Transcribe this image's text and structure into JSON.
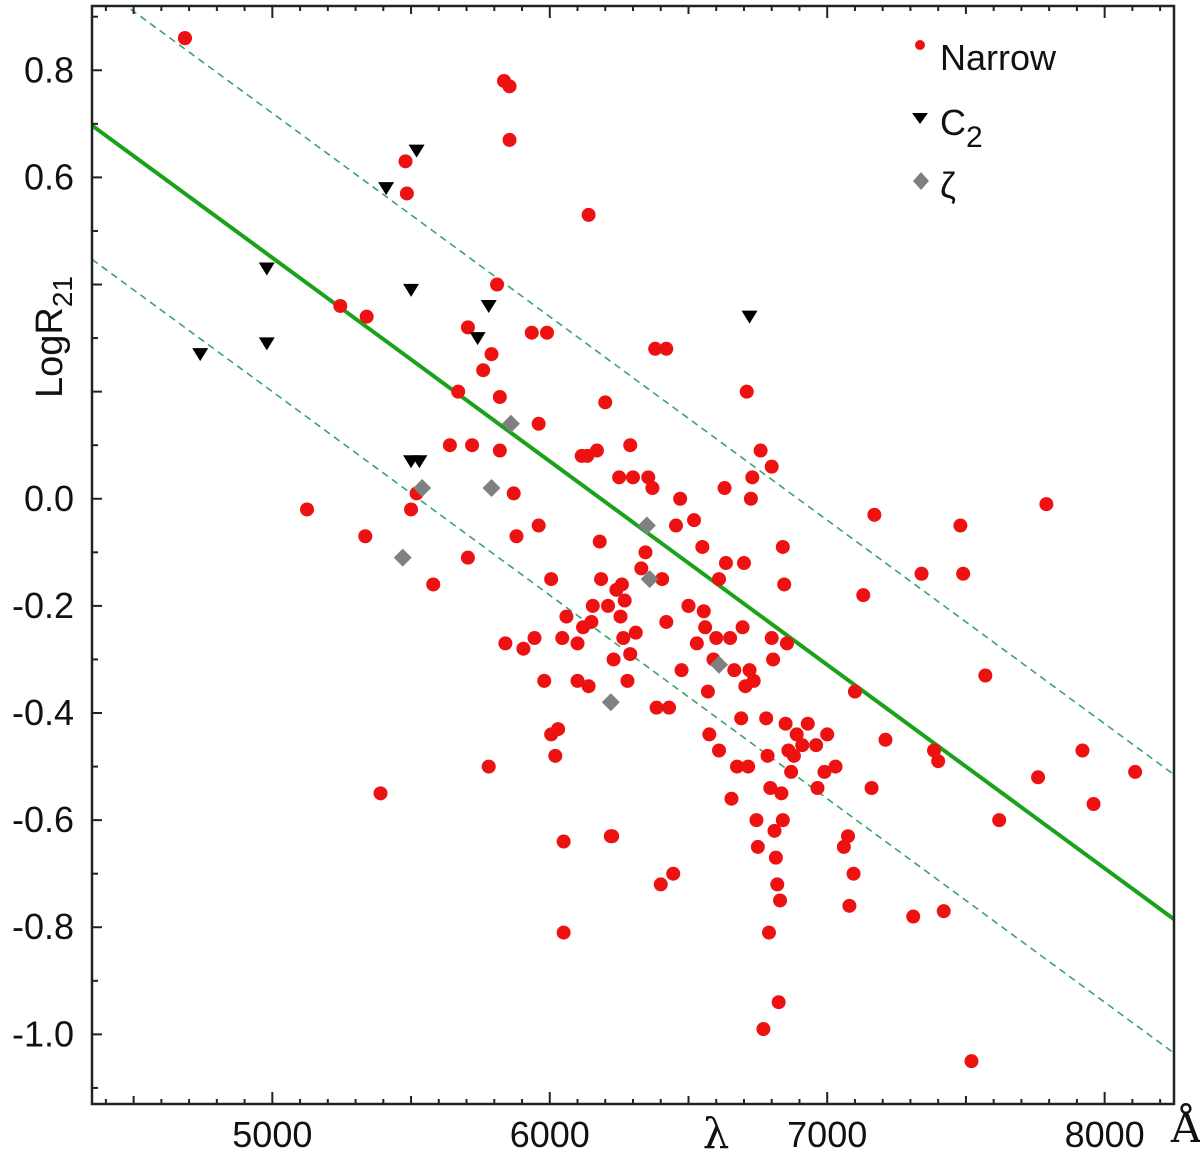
{
  "chart_data": {
    "type": "scatter",
    "xlabel": "λ",
    "x_unit": "Å",
    "ylabel_main": "LogR",
    "ylabel_sub": "21",
    "xlim": [
      4350,
      8250
    ],
    "ylim": [
      -1.13,
      0.92
    ],
    "x_ticks": [
      5000,
      6000,
      7000,
      8000
    ],
    "x_tick_labels": [
      "5000",
      "6000",
      "7000",
      "8000"
    ],
    "y_ticks": [
      0.8,
      0.6,
      0.0,
      -0.2,
      -0.4,
      -0.6,
      -0.8,
      -1.0
    ],
    "y_tick_labels": [
      "0.8",
      "0.6",
      "0.0",
      "-0.2",
      "-0.4",
      "-0.6",
      "-0.8",
      "-1.0"
    ],
    "grid": false,
    "legend_position": "top-right",
    "colors": {
      "narrow": "#ee1111",
      "c2": "#000000",
      "zeta": "#808080",
      "fit": "#1aa31a",
      "bounds": "#3aa36f"
    },
    "series": [
      {
        "name": "Narrow",
        "subscript": "",
        "marker": "circle",
        "points": [
          [
            4685,
            0.86
          ],
          [
            4685,
            0.86
          ],
          [
            5125,
            -0.02
          ],
          [
            5245,
            0.36
          ],
          [
            5340,
            0.34
          ],
          [
            5335,
            -0.07
          ],
          [
            5390,
            -0.55
          ],
          [
            5480,
            0.63
          ],
          [
            5485,
            0.57
          ],
          [
            5500,
            -0.02
          ],
          [
            5520,
            0.01
          ],
          [
            5580,
            -0.16
          ],
          [
            5640,
            0.1
          ],
          [
            5670,
            0.2
          ],
          [
            5705,
            0.32
          ],
          [
            5720,
            0.1
          ],
          [
            5705,
            -0.11
          ],
          [
            5760,
            0.24
          ],
          [
            5780,
            -0.5
          ],
          [
            5790,
            0.27
          ],
          [
            5810,
            0.4
          ],
          [
            5820,
            0.19
          ],
          [
            5820,
            0.09
          ],
          [
            5835,
            0.78
          ],
          [
            5855,
            0.77
          ],
          [
            5855,
            0.67
          ],
          [
            5840,
            -0.27
          ],
          [
            5870,
            0.01
          ],
          [
            5880,
            -0.07
          ],
          [
            5905,
            -0.28
          ],
          [
            5935,
            0.31
          ],
          [
            5960,
            0.14
          ],
          [
            5960,
            -0.05
          ],
          [
            5980,
            -0.34
          ],
          [
            5990,
            0.31
          ],
          [
            5945,
            -0.26
          ],
          [
            6005,
            -0.15
          ],
          [
            6005,
            -0.44
          ],
          [
            6020,
            -0.48
          ],
          [
            6030,
            -0.43
          ],
          [
            6045,
            -0.26
          ],
          [
            6060,
            -0.22
          ],
          [
            6050,
            -0.64
          ],
          [
            6050,
            -0.81
          ],
          [
            6100,
            -0.27
          ],
          [
            6100,
            -0.34
          ],
          [
            6115,
            0.08
          ],
          [
            6135,
            0.08
          ],
          [
            6120,
            -0.24
          ],
          [
            6140,
            -0.35
          ],
          [
            6150,
            -0.23
          ],
          [
            6155,
            -0.2
          ],
          [
            6140,
            0.53
          ],
          [
            6170,
            0.09
          ],
          [
            6180,
            -0.08
          ],
          [
            6185,
            -0.15
          ],
          [
            6200,
            0.18
          ],
          [
            6210,
            -0.2
          ],
          [
            6230,
            -0.3
          ],
          [
            6220,
            -0.63
          ],
          [
            6225,
            -0.63
          ],
          [
            6240,
            -0.17
          ],
          [
            6250,
            0.04
          ],
          [
            6255,
            -0.22
          ],
          [
            6260,
            -0.16
          ],
          [
            6265,
            -0.26
          ],
          [
            6270,
            -0.19
          ],
          [
            6280,
            -0.34
          ],
          [
            6290,
            0.1
          ],
          [
            6290,
            -0.29
          ],
          [
            6300,
            0.04
          ],
          [
            6310,
            -0.25
          ],
          [
            6330,
            -0.13
          ],
          [
            6345,
            -0.1
          ],
          [
            6355,
            0.04
          ],
          [
            6370,
            0.02
          ],
          [
            6380,
            0.28
          ],
          [
            6385,
            -0.39
          ],
          [
            6400,
            -0.72
          ],
          [
            6405,
            -0.15
          ],
          [
            6420,
            -0.23
          ],
          [
            6420,
            0.28
          ],
          [
            6430,
            -0.39
          ],
          [
            6445,
            -0.7
          ],
          [
            6455,
            -0.05
          ],
          [
            6470,
            0.0
          ],
          [
            6475,
            -0.32
          ],
          [
            6500,
            -0.2
          ],
          [
            6500,
            -0.2
          ],
          [
            6520,
            -0.04
          ],
          [
            6530,
            -0.27
          ],
          [
            6550,
            -0.09
          ],
          [
            6555,
            -0.21
          ],
          [
            6560,
            -0.24
          ],
          [
            6570,
            -0.36
          ],
          [
            6575,
            -0.44
          ],
          [
            6590,
            -0.3
          ],
          [
            6600,
            -0.26
          ],
          [
            6610,
            -0.15
          ],
          [
            6610,
            -0.47
          ],
          [
            6630,
            0.02
          ],
          [
            6635,
            -0.12
          ],
          [
            6650,
            -0.26
          ],
          [
            6655,
            -0.56
          ],
          [
            6665,
            -0.32
          ],
          [
            6675,
            -0.5
          ],
          [
            6690,
            -0.41
          ],
          [
            6695,
            -0.24
          ],
          [
            6700,
            -0.12
          ],
          [
            6705,
            -0.35
          ],
          [
            6710,
            0.2
          ],
          [
            6715,
            -0.5
          ],
          [
            6720,
            -0.32
          ],
          [
            6725,
            0.0
          ],
          [
            6730,
            0.04
          ],
          [
            6735,
            -0.34
          ],
          [
            6745,
            -0.6
          ],
          [
            6750,
            -0.65
          ],
          [
            6760,
            0.09
          ],
          [
            6770,
            -0.99
          ],
          [
            6780,
            -0.41
          ],
          [
            6785,
            -0.48
          ],
          [
            6790,
            -0.81
          ],
          [
            6795,
            -0.54
          ],
          [
            6800,
            0.06
          ],
          [
            6800,
            -0.26
          ],
          [
            6805,
            -0.3
          ],
          [
            6810,
            -0.62
          ],
          [
            6815,
            -0.67
          ],
          [
            6820,
            -0.72
          ],
          [
            6825,
            -0.94
          ],
          [
            6830,
            -0.75
          ],
          [
            6835,
            -0.55
          ],
          [
            6840,
            -0.6
          ],
          [
            6840,
            -0.09
          ],
          [
            6845,
            -0.16
          ],
          [
            6850,
            -0.42
          ],
          [
            6855,
            -0.27
          ],
          [
            6860,
            -0.47
          ],
          [
            6870,
            -0.51
          ],
          [
            6880,
            -0.48
          ],
          [
            6890,
            -0.44
          ],
          [
            6910,
            -0.46
          ],
          [
            6930,
            -0.42
          ],
          [
            6960,
            -0.46
          ],
          [
            6965,
            -0.54
          ],
          [
            6990,
            -0.51
          ],
          [
            7000,
            -0.44
          ],
          [
            7030,
            -0.5
          ],
          [
            7060,
            -0.65
          ],
          [
            7075,
            -0.63
          ],
          [
            7080,
            -0.76
          ],
          [
            7095,
            -0.7
          ],
          [
            7100,
            -0.36
          ],
          [
            7130,
            -0.18
          ],
          [
            7160,
            -0.54
          ],
          [
            7170,
            -0.03
          ],
          [
            7210,
            -0.45
          ],
          [
            7310,
            -0.78
          ],
          [
            7340,
            -0.14
          ],
          [
            7385,
            -0.47
          ],
          [
            7400,
            -0.49
          ],
          [
            7420,
            -0.77
          ],
          [
            7480,
            -0.05
          ],
          [
            7490,
            -0.14
          ],
          [
            7520,
            -1.05
          ],
          [
            7570,
            -0.33
          ],
          [
            7620,
            -0.6
          ],
          [
            7760,
            -0.52
          ],
          [
            7790,
            -0.01
          ],
          [
            7920,
            -0.47
          ],
          [
            7960,
            -0.57
          ],
          [
            8110,
            -0.51
          ]
        ]
      },
      {
        "name": "C",
        "subscript": "2",
        "marker": "triangle-down",
        "points": [
          [
            4740,
            0.27
          ],
          [
            4980,
            0.43
          ],
          [
            4980,
            0.29
          ],
          [
            5410,
            0.58
          ],
          [
            5500,
            0.39
          ],
          [
            5520,
            0.65
          ],
          [
            5500,
            0.07
          ],
          [
            5530,
            0.07
          ],
          [
            5740,
            0.3
          ],
          [
            5780,
            0.36
          ],
          [
            6720,
            0.34
          ]
        ]
      },
      {
        "name": "ζ",
        "subscript": "",
        "marker": "diamond",
        "points": [
          [
            5470,
            -0.11
          ],
          [
            5540,
            0.02
          ],
          [
            5790,
            0.02
          ],
          [
            5860,
            0.14
          ],
          [
            6220,
            -0.38
          ],
          [
            6350,
            -0.05
          ],
          [
            6360,
            -0.15
          ],
          [
            6610,
            -0.31
          ]
        ]
      }
    ],
    "fit_line": {
      "slope": -0.00038,
      "intercept": 2.35
    },
    "bound_lines": [
      {
        "slope": -0.00038,
        "intercept": 2.62
      },
      {
        "slope": -0.00038,
        "intercept": 2.1
      }
    ]
  }
}
